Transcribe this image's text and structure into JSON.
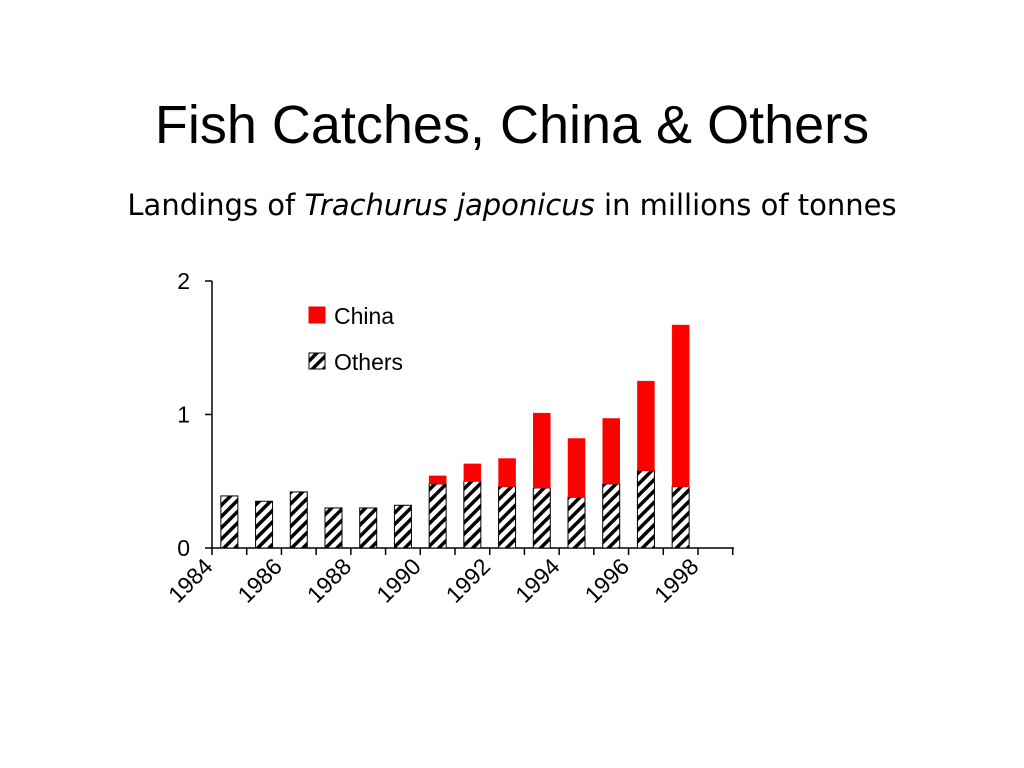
{
  "slide": {
    "title": "Fish Catches, China & Others",
    "subtitle_pre": "Landings of ",
    "subtitle_species": "Trachurus japonicus",
    "subtitle_post": " in millions of tonnes"
  },
  "colors": {
    "china": "#ff0000",
    "others_fill": "#ffffff",
    "others_hatch": "#000000"
  },
  "chart_data": {
    "type": "bar",
    "stacked": true,
    "categories": [
      "1984",
      "1985",
      "1986",
      "1987",
      "1988",
      "1989",
      "1990",
      "1991",
      "1992",
      "1993",
      "1994",
      "1995",
      "1996",
      "1997"
    ],
    "x_tick_labels": [
      "1984",
      "1986",
      "1988",
      "1990",
      "1992",
      "1994",
      "1996",
      "1998"
    ],
    "series": [
      {
        "name": "Others",
        "values": [
          0.39,
          0.35,
          0.42,
          0.3,
          0.3,
          0.32,
          0.48,
          0.5,
          0.46,
          0.45,
          0.38,
          0.48,
          0.58,
          0.46
        ]
      },
      {
        "name": "China",
        "values": [
          0,
          0,
          0,
          0,
          0,
          0,
          0.06,
          0.13,
          0.21,
          0.56,
          0.44,
          0.49,
          0.67,
          1.21
        ]
      }
    ],
    "ylim": [
      0,
      2
    ],
    "y_ticks": [
      "0",
      "1",
      "2"
    ],
    "xlabel": "",
    "ylabel": "",
    "legend": {
      "placement": "top-left inside plot",
      "entries": [
        "China",
        "Others"
      ]
    },
    "grid": false
  }
}
